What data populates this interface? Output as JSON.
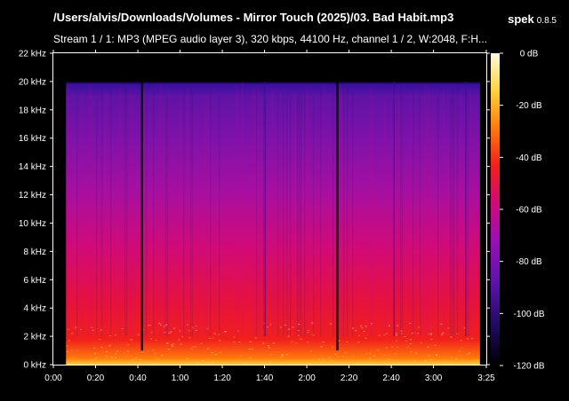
{
  "window": {
    "title": "/Users/alvis/Downloads/Volumes - Mirror Touch (2025)/03. Bad Habit.mp3",
    "app_name": "spek",
    "app_version": "0.8.5",
    "stream_info": "Stream 1 / 1: MP3 (MPEG audio layer 3), 320 kbps, 44100 Hz, channel 1 / 2, W:2048, F:H..."
  },
  "chart_data": {
    "type": "heatmap",
    "title": "/Users/alvis/Downloads/Volumes - Mirror Touch (2025)/03. Bad Habit.mp3",
    "subtitle": "Stream 1 / 1: MP3 (MPEG audio layer 3), 320 kbps, 44100 Hz, channel 1 / 2, W:2048, F:H...",
    "x_axis": {
      "unit": "time",
      "range": [
        "0:00",
        "3:25"
      ],
      "range_seconds": [
        0,
        205
      ],
      "ticks": [
        "0:00",
        "0:20",
        "0:40",
        "1:00",
        "1:20",
        "1:40",
        "2:00",
        "2:20",
        "2:40",
        "3:00",
        "3:25"
      ],
      "tick_seconds": [
        0,
        20,
        40,
        60,
        80,
        100,
        120,
        140,
        160,
        180,
        205
      ]
    },
    "y_axis": {
      "unit": "kHz",
      "range": [
        0,
        22
      ],
      "ticks": [
        "0 kHz",
        "2 kHz",
        "4 kHz",
        "6 kHz",
        "8 kHz",
        "10 kHz",
        "12 kHz",
        "14 kHz",
        "16 kHz",
        "18 kHz",
        "20 kHz",
        "22 kHz"
      ],
      "tick_values": [
        0,
        2,
        4,
        6,
        8,
        10,
        12,
        14,
        16,
        18,
        20,
        22
      ]
    },
    "color_scale": {
      "unit": "dB",
      "range": [
        -120,
        0
      ],
      "ticks": [
        "0 dB",
        "-20 dB",
        "-40 dB",
        "-60 dB",
        "-80 dB",
        "-100 dB",
        "-120 dB"
      ],
      "tick_values": [
        0,
        -20,
        -40,
        -60,
        -80,
        -100,
        -120
      ],
      "stops": [
        "#000000",
        "#1c0a5c",
        "#5a13a8",
        "#9a0fb6",
        "#d10a78",
        "#f0201c",
        "#ff7a0c",
        "#ffd23c",
        "#fffbe0"
      ]
    },
    "content_cutoff_khz": 20,
    "time_range_seconds": [
      6,
      202
    ],
    "silence_gaps_seconds": [
      [
        0,
        6
      ],
      [
        41.5,
        42.5
      ],
      [
        134,
        135
      ],
      [
        202,
        205
      ]
    ],
    "quiet_dropouts_seconds": [
      100,
      161,
      195
    ]
  }
}
